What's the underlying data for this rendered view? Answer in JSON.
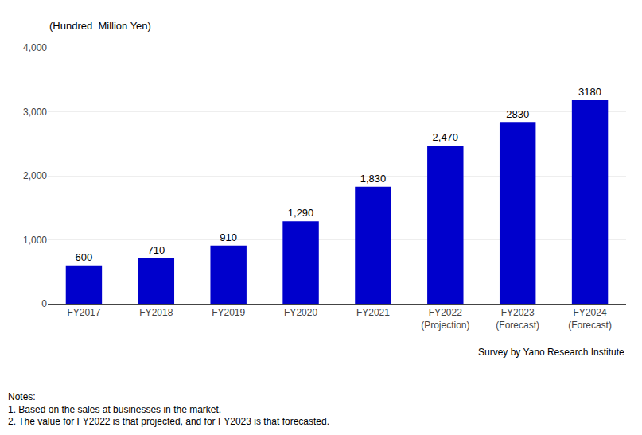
{
  "chart_data": {
    "type": "bar",
    "categories": [
      "FY2017",
      "FY2018",
      "FY2019",
      "FY2020",
      "FY2021",
      "FY2022\n(Projection)",
      "FY2023\n(Forecast)",
      "FY2024\n(Forecast)"
    ],
    "values": [
      600,
      710,
      910,
      1290,
      1830,
      2470,
      2830,
      3180
    ],
    "value_labels": [
      "600",
      "710",
      "910",
      "1,290",
      "1,830",
      "2,470",
      "2830",
      "3180"
    ],
    "data_labels": true,
    "color": "#0000CC",
    "ylabel": "(Hundred  Million Yen)",
    "ylim": [
      0,
      4000
    ],
    "yticks": [
      0,
      {
        "value": 1000,
        "label": "1,000"
      },
      {
        "value": 2000,
        "label": "2,000"
      },
      {
        "value": 3000,
        "label": "3,000"
      },
      {
        "value": 4000,
        "label": "4,000"
      }
    ],
    "grid": true,
    "notes": [
      "Notes:",
      "1. Based on the sales at businesses in the market.",
      "2. The value for FY2022 is that projected, and for FY2023 is that forecasted."
    ],
    "source": "Survey by Yano Research Institute"
  }
}
